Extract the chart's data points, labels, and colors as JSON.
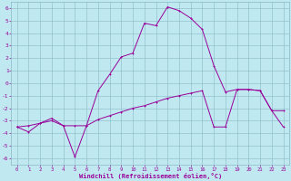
{
  "bg_color": "#c0e8f0",
  "grid_color": "#8ab8c8",
  "line_color": "#990099",
  "xlim": [
    -0.5,
    23.5
  ],
  "ylim": [
    -6.5,
    6.5
  ],
  "xtick_vals": [
    0,
    1,
    2,
    3,
    4,
    5,
    6,
    7,
    8,
    9,
    10,
    11,
    12,
    13,
    14,
    15,
    16,
    17,
    18,
    19,
    20,
    21,
    22,
    23
  ],
  "ytick_vals": [
    -6,
    -5,
    -4,
    -3,
    -2,
    -1,
    0,
    1,
    2,
    3,
    4,
    5,
    6
  ],
  "xlabel": "Windchill (Refroidissement éolien,°C)",
  "line1_x": [
    0,
    1,
    2,
    3,
    4,
    5,
    6,
    7,
    8,
    9,
    10,
    11,
    12,
    13,
    14,
    15,
    16,
    17,
    18,
    19,
    20,
    21,
    22,
    23
  ],
  "line1_y": [
    -3.5,
    -3.9,
    -3.2,
    -3.0,
    -3.4,
    -5.9,
    -3.4,
    -0.6,
    0.7,
    2.1,
    2.4,
    4.8,
    4.6,
    6.1,
    5.8,
    5.2,
    4.3,
    1.4,
    -0.7,
    -0.5,
    -0.5,
    -0.6,
    -2.2,
    -2.2
  ],
  "line2_x": [
    0,
    1,
    2,
    3,
    4,
    5,
    6,
    7,
    8,
    9,
    10,
    11,
    12,
    13,
    14,
    15,
    16,
    17,
    18,
    19,
    20,
    21,
    22,
    23
  ],
  "line2_y": [
    -3.5,
    -3.4,
    -3.2,
    -2.8,
    -3.4,
    -3.4,
    -3.4,
    -2.9,
    -2.6,
    -2.3,
    -2.0,
    -1.8,
    -1.5,
    -1.2,
    -1.0,
    -0.8,
    -0.6,
    -3.5,
    -3.5,
    -0.5,
    -0.5,
    -0.6,
    -2.2,
    -3.5
  ]
}
